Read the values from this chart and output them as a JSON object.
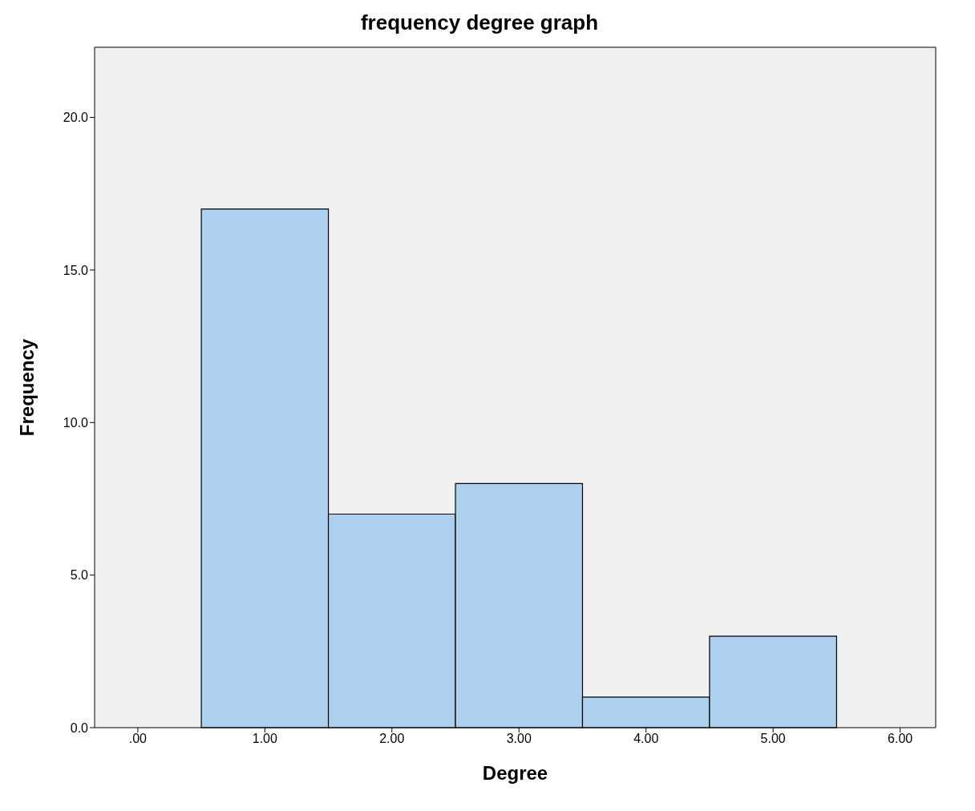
{
  "chart_data": {
    "type": "histogram",
    "title": "frequency degree graph",
    "xlabel": "Degree",
    "ylabel": "Frequency",
    "bins": [
      0.5,
      1.5,
      2.5,
      3.5,
      4.5,
      5.5
    ],
    "values": [
      17,
      7,
      8,
      1,
      3
    ],
    "color": "#acd0ee",
    "xlim": [
      -0.34,
      6.28
    ],
    "xticks": [
      {
        "value": 0,
        "label": ".00"
      },
      {
        "value": 1,
        "label": "1.00"
      },
      {
        "value": 2,
        "label": "2.00"
      },
      {
        "value": 3,
        "label": "3.00"
      },
      {
        "value": 4,
        "label": "4.00"
      },
      {
        "value": 5,
        "label": "5.00"
      },
      {
        "value": 6,
        "label": "6.00"
      }
    ],
    "ylim": [
      0,
      22.3
    ],
    "yticks": [
      {
        "value": 0,
        "label": "0.0"
      },
      {
        "value": 5,
        "label": "5.0"
      },
      {
        "value": 10,
        "label": "10.0"
      },
      {
        "value": 15,
        "label": "15.0"
      },
      {
        "value": 20,
        "label": "20.0"
      }
    ],
    "grid": false
  }
}
